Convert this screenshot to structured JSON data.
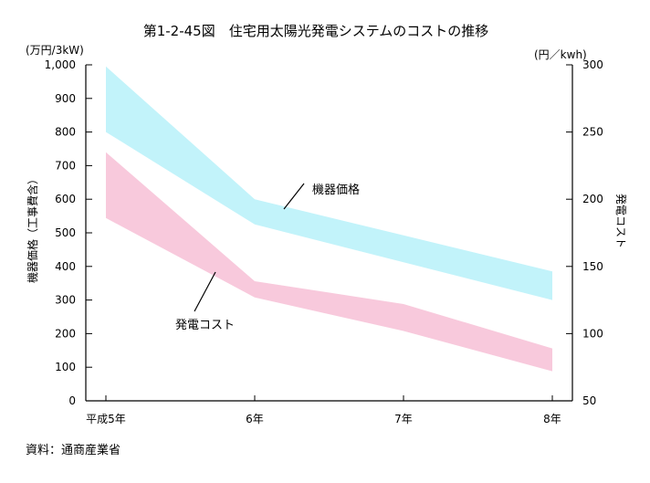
{
  "chart_data": {
    "type": "area",
    "title": "第1-2-45図　住宅用太陽光発電システムのコストの推移",
    "categories": [
      "平成5年",
      "6年",
      "7年",
      "8年"
    ],
    "x": [
      5,
      6,
      7,
      8
    ],
    "y_left": {
      "label": "機器価格（工事費含）",
      "unit": "(万円/3kW)",
      "range": [
        0,
        1000
      ],
      "ticks": [
        0,
        100,
        200,
        300,
        400,
        500,
        600,
        700,
        800,
        900,
        1000
      ],
      "tick_labels": [
        "0",
        "100",
        "200",
        "300",
        "400",
        "500",
        "600",
        "700",
        "800",
        "900",
        "1,000"
      ]
    },
    "y_right": {
      "label": "発電コスト",
      "unit": "(円／kwh)",
      "range": [
        50,
        300
      ],
      "ticks": [
        50,
        100,
        150,
        200,
        250,
        300
      ],
      "tick_labels": [
        "50",
        "100",
        "150",
        "200",
        "250",
        "300"
      ]
    },
    "series": [
      {
        "name": "機器価格",
        "axis": "left",
        "color": "#c2f3fa",
        "upper": [
          {
            "x": 5,
            "y": 995
          },
          {
            "x": 6,
            "y": 600
          },
          {
            "x": 8,
            "y": 385
          }
        ],
        "lower": [
          {
            "x": 5,
            "y": 800
          },
          {
            "x": 6,
            "y": 525
          },
          {
            "x": 8,
            "y": 300
          }
        ]
      },
      {
        "name": "発電コスト",
        "axis": "right",
        "color": "#f8c9dc",
        "upper": [
          {
            "x": 5,
            "y": 235
          },
          {
            "x": 6,
            "y": 139
          },
          {
            "x": 7,
            "y": 122
          },
          {
            "x": 8,
            "y": 89
          }
        ],
        "lower": [
          {
            "x": 5,
            "y": 186
          },
          {
            "x": 6,
            "y": 127
          },
          {
            "x": 7,
            "y": 102
          },
          {
            "x": 8,
            "y": 72
          }
        ]
      }
    ],
    "annotations": [
      "機器価格",
      "発電コスト"
    ],
    "grid": false,
    "source": "資料：通商産業省"
  }
}
